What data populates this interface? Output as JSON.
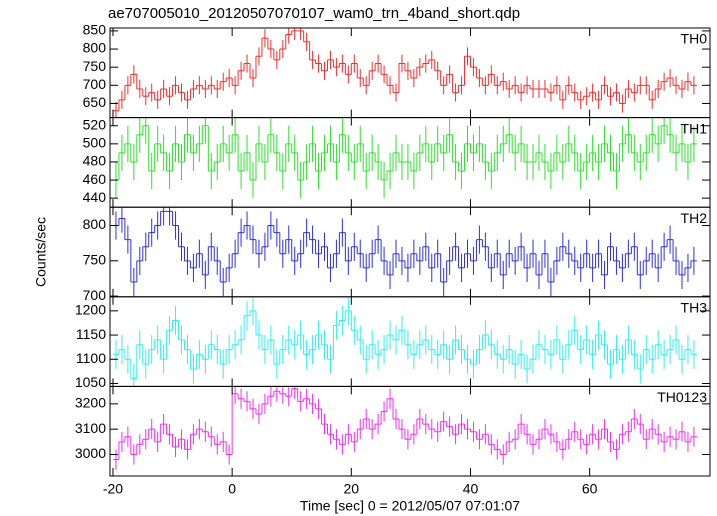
{
  "chart_data": {
    "type": "step",
    "title": "ae707005010_20120507070107_wam0_trn_4band_short.qdp",
    "xlabel": "Time [sec] 0 = 2012/05/07 07:01:07",
    "ylabel": "Counts/sec",
    "xlim": [
      -20.5,
      80.2
    ],
    "xticks": [
      -20,
      0,
      20,
      40,
      60
    ],
    "x": [
      -19.5,
      -18.5,
      -17.5,
      -16.5,
      -15.5,
      -14.5,
      -13.5,
      -12.5,
      -11.5,
      -10.5,
      -9.5,
      -8.5,
      -7.5,
      -6.5,
      -5.5,
      -4.5,
      -3.5,
      -2.5,
      -1.5,
      -0.5,
      0.5,
      1.5,
      2.5,
      3.5,
      4.5,
      5.5,
      6.5,
      7.5,
      8.5,
      9.5,
      10.5,
      11.5,
      12.5,
      13.5,
      14.5,
      15.5,
      16.5,
      17.5,
      18.5,
      19.5,
      20.5,
      21.5,
      22.5,
      23.5,
      24.5,
      25.5,
      26.5,
      27.5,
      28.5,
      29.5,
      30.5,
      31.5,
      32.5,
      33.5,
      34.5,
      35.5,
      36.5,
      37.5,
      38.5,
      39.5,
      40.5,
      41.5,
      42.5,
      43.5,
      44.5,
      45.5,
      46.5,
      47.5,
      48.5,
      49.5,
      50.5,
      51.5,
      52.5,
      53.5,
      54.5,
      55.5,
      56.5,
      57.5,
      58.5,
      59.5,
      60.5,
      61.5,
      62.5,
      63.5,
      64.5,
      65.5,
      66.5,
      67.5,
      68.5,
      69.5,
      70.5,
      71.5,
      72.5,
      73.5,
      74.5,
      75.5,
      76.5,
      77.5
    ],
    "panels": [
      {
        "name": "TH0",
        "color": "#f03030",
        "error": 25,
        "ylim": [
          611,
          858
        ],
        "yticks": [
          650,
          700,
          750,
          800,
          850
        ],
        "values": [
          630,
          660,
          700,
          730,
          690,
          670,
          680,
          660,
          690,
          670,
          700,
          680,
          660,
          690,
          700,
          690,
          700,
          690,
          710,
          720,
          700,
          740,
          760,
          720,
          780,
          830,
          800,
          770,
          800,
          840,
          850,
          850,
          820,
          770,
          760,
          740,
          770,
          750,
          760,
          730,
          760,
          720,
          700,
          740,
          760,
          730,
          700,
          680,
          760,
          740,
          720,
          750,
          760,
          770,
          740,
          700,
          730,
          680,
          700,
          780,
          750,
          720,
          700,
          730,
          700,
          710,
          690,
          700,
          680,
          700,
          690,
          690,
          690,
          680,
          700,
          660,
          700,
          680,
          660,
          670,
          680,
          660,
          700,
          670,
          680,
          650,
          690,
          680,
          700,
          700,
          660,
          690,
          710,
          720,
          700,
          690,
          710,
          700
        ]
      },
      {
        "name": "TH1",
        "color": "#30e030",
        "error": 20,
        "ylim": [
          430,
          529
        ],
        "yticks": [
          440,
          460,
          480,
          500,
          520
        ],
        "values": [
          460,
          490,
          500,
          480,
          510,
          520,
          470,
          500,
          490,
          470,
          500,
          480,
          510,
          490,
          500,
          520,
          470,
          480,
          500,
          490,
          510,
          470,
          490,
          460,
          500,
          480,
          510,
          490,
          470,
          500,
          490,
          460,
          480,
          500,
          470,
          490,
          500,
          480,
          510,
          490,
          480,
          500,
          470,
          490,
          480,
          460,
          470,
          490,
          480,
          480,
          470,
          490,
          500,
          480,
          500,
          490,
          510,
          480,
          470,
          500,
          490,
          500,
          480,
          470,
          490,
          500,
          510,
          490,
          500,
          480,
          480,
          490,
          480,
          470,
          490,
          480,
          500,
          490,
          470,
          480,
          490,
          480,
          500,
          490,
          470,
          500,
          510,
          490,
          480,
          490,
          510,
          500,
          520,
          510,
          490,
          500,
          480,
          500
        ]
      },
      {
        "name": "TH2",
        "color": "#3030e0",
        "error": 20,
        "ylim": [
          699,
          826
        ],
        "yticks": [
          700,
          750,
          800
        ],
        "values": [
          800,
          810,
          780,
          720,
          750,
          770,
          790,
          800,
          820,
          820,
          800,
          770,
          750,
          740,
          760,
          730,
          770,
          750,
          720,
          740,
          760,
          790,
          800,
          780,
          760,
          770,
          800,
          790,
          760,
          780,
          750,
          760,
          790,
          780,
          760,
          770,
          740,
          760,
          790,
          750,
          770,
          760,
          740,
          760,
          780,
          750,
          730,
          760,
          750,
          740,
          760,
          750,
          770,
          740,
          760,
          720,
          750,
          770,
          740,
          760,
          750,
          780,
          770,
          740,
          760,
          730,
          760,
          750,
          770,
          740,
          760,
          730,
          760,
          720,
          750,
          770,
          760,
          750,
          740,
          760,
          740,
          760,
          730,
          770,
          750,
          740,
          760,
          770,
          730,
          750,
          760,
          740,
          770,
          780,
          750,
          730,
          740,
          750
        ]
      },
      {
        "name": "TH3",
        "color": "#30f0f0",
        "error": 30,
        "ylim": [
          1044,
          1229
        ],
        "yticks": [
          1050,
          1100,
          1150,
          1200
        ],
        "values": [
          1110,
          1120,
          1100,
          1060,
          1130,
          1090,
          1120,
          1140,
          1100,
          1160,
          1180,
          1140,
          1120,
          1080,
          1110,
          1100,
          1130,
          1120,
          1090,
          1120,
          1130,
          1140,
          1190,
          1200,
          1150,
          1120,
          1140,
          1090,
          1120,
          1140,
          1130,
          1150,
          1110,
          1120,
          1150,
          1130,
          1100,
          1170,
          1180,
          1200,
          1160,
          1140,
          1100,
          1130,
          1110,
          1120,
          1150,
          1140,
          1160,
          1130,
          1110,
          1130,
          1140,
          1120,
          1110,
          1130,
          1100,
          1140,
          1120,
          1100,
          1090,
          1120,
          1150,
          1130,
          1110,
          1100,
          1120,
          1090,
          1110,
          1080,
          1100,
          1130,
          1120,
          1110,
          1140,
          1100,
          1130,
          1160,
          1120,
          1140,
          1110,
          1150,
          1130,
          1090,
          1120,
          1100,
          1140,
          1110,
          1080,
          1120,
          1100,
          1130,
          1110,
          1120,
          1140,
          1100,
          1120,
          1110
        ]
      },
      {
        "name": "TH0123",
        "color": "#f030f0",
        "error": 40,
        "ylim": [
          2915,
          3269
        ],
        "yticks": [
          3000,
          3100,
          3200
        ],
        "values": [
          2980,
          3050,
          3070,
          3000,
          3040,
          3060,
          3100,
          3050,
          3120,
          3080,
          3030,
          3060,
          3020,
          3080,
          3100,
          3090,
          3070,
          3040,
          3050,
          3000,
          3240,
          3220,
          3210,
          3180,
          3160,
          3200,
          3230,
          3250,
          3240,
          3230,
          3260,
          3210,
          3220,
          3200,
          3180,
          3120,
          3080,
          3060,
          3040,
          3080,
          3050,
          3100,
          3140,
          3100,
          3120,
          3170,
          3220,
          3140,
          3100,
          3060,
          3080,
          3140,
          3120,
          3100,
          3090,
          3130,
          3110,
          3080,
          3120,
          3100,
          3090,
          3060,
          3080,
          3040,
          3020,
          3000,
          3050,
          3060,
          3120,
          3080,
          3040,
          3060,
          3100,
          3080,
          3050,
          3020,
          3060,
          3090,
          3060,
          3040,
          3080,
          3060,
          3100,
          3050,
          3020,
          3080,
          3090,
          3140,
          3120,
          3060,
          3100,
          3080,
          3050,
          3070,
          3060,
          3090,
          3050,
          3070
        ]
      }
    ]
  }
}
